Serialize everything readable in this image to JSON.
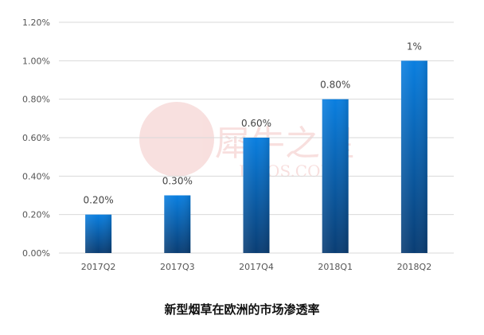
{
  "chart_data": {
    "type": "bar",
    "title": "新型烟草在欧洲的市场渗透率",
    "categories": [
      "2017Q2",
      "2017Q3",
      "2017Q4",
      "2018Q1",
      "2018Q2"
    ],
    "values": [
      0.2,
      0.3,
      0.6,
      0.8,
      1.0
    ],
    "data_labels": [
      "0.20%",
      "0.30%",
      "0.60%",
      "0.80%",
      "1%"
    ],
    "yticks": [
      "0.00%",
      "0.20%",
      "0.40%",
      "0.60%",
      "0.80%",
      "1.00%",
      "1.20%"
    ],
    "ylim": [
      0,
      1.2
    ],
    "xlabel": "",
    "ylabel": "",
    "grid": true,
    "legend": "none",
    "bar_color_top": "#0a7fe0",
    "bar_color_bottom": "#0a3d73",
    "gridline_color": "#d9d9d9"
  },
  "watermark": {
    "text": "犀牛之星",
    "latin": "LIFOS.COM"
  }
}
